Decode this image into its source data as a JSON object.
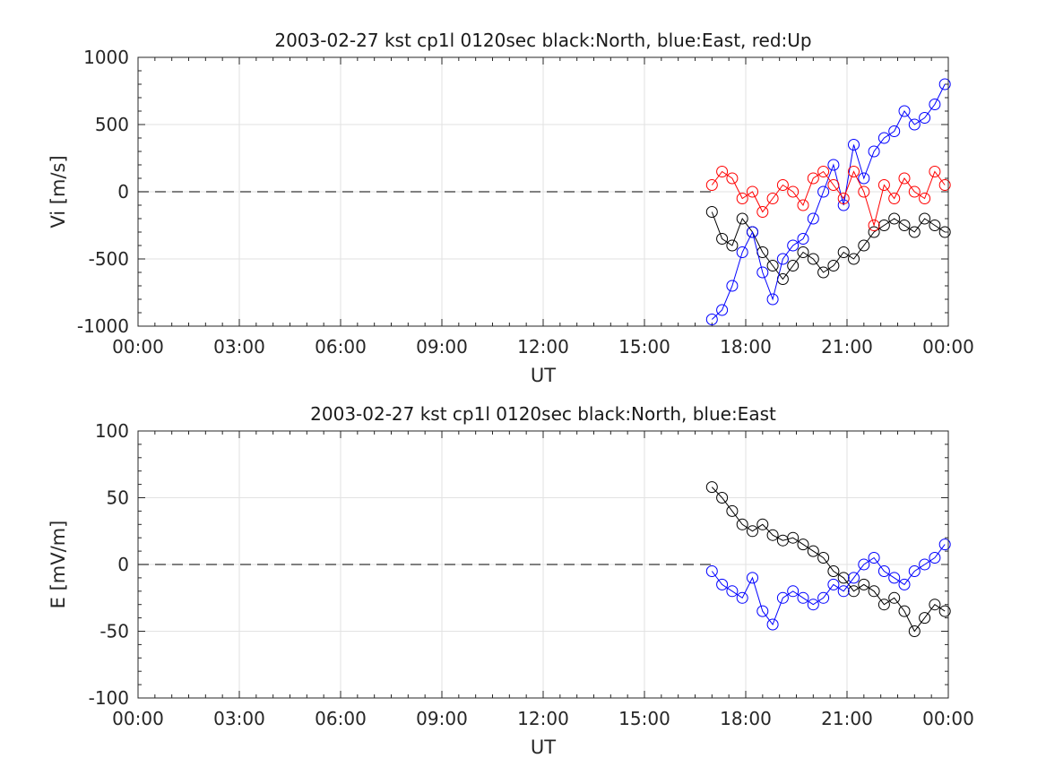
{
  "colors": {
    "north": "#000000",
    "east": "#0000ff",
    "up": "#ff0000",
    "grid": "#e2e2e2",
    "zero_line": "#000000"
  },
  "chart_data": [
    {
      "type": "scatter",
      "title": "2003-02-27 kst cp1l 0120sec black:North, blue:East, red:Up",
      "xlabel": "UT",
      "ylabel": "Vi [m/s]",
      "xlim": [
        0,
        24
      ],
      "ylim": [
        -1000,
        1000
      ],
      "x_ticks": [
        "00:00",
        "03:00",
        "06:00",
        "09:00",
        "12:00",
        "15:00",
        "18:00",
        "21:00",
        "00:00"
      ],
      "y_ticks": [
        "-1000",
        "-500",
        "0",
        "500",
        "1000"
      ],
      "grid": true,
      "zero_line": true,
      "markers": "open-circles-with-lines",
      "series": [
        {
          "color": "north",
          "x": [
            17.0,
            17.3,
            17.6,
            17.9,
            18.2,
            18.5,
            18.8,
            19.1,
            19.4,
            19.7,
            20.0,
            20.3,
            20.6,
            20.9,
            21.2,
            21.5,
            21.8,
            22.1,
            22.4,
            22.7,
            23.0,
            23.3,
            23.6,
            23.9
          ],
          "y": [
            -150,
            -350,
            -400,
            -200,
            -300,
            -450,
            -550,
            -650,
            -550,
            -450,
            -500,
            -600,
            -550,
            -450,
            -500,
            -400,
            -300,
            -250,
            -200,
            -250,
            -300,
            -200,
            -250,
            -300
          ]
        },
        {
          "color": "east",
          "x": [
            17.0,
            17.3,
            17.6,
            17.9,
            18.2,
            18.5,
            18.8,
            19.1,
            19.4,
            19.7,
            20.0,
            20.3,
            20.6,
            20.9,
            21.2,
            21.5,
            21.8,
            22.1,
            22.4,
            22.7,
            23.0,
            23.3,
            23.6,
            23.9
          ],
          "y": [
            -950,
            -880,
            -700,
            -450,
            -300,
            -600,
            -800,
            -500,
            -400,
            -350,
            -200,
            0,
            200,
            -100,
            350,
            100,
            300,
            400,
            450,
            600,
            500,
            550,
            650,
            800
          ]
        },
        {
          "color": "up",
          "x": [
            17.0,
            17.3,
            17.6,
            17.9,
            18.2,
            18.5,
            18.8,
            19.1,
            19.4,
            19.7,
            20.0,
            20.3,
            20.6,
            20.9,
            21.2,
            21.5,
            21.8,
            22.1,
            22.4,
            22.7,
            23.0,
            23.3,
            23.6,
            23.9
          ],
          "y": [
            50,
            150,
            100,
            -50,
            0,
            -150,
            -50,
            50,
            0,
            -100,
            100,
            150,
            50,
            -50,
            150,
            0,
            -250,
            50,
            -50,
            100,
            0,
            -50,
            150,
            50
          ]
        }
      ]
    },
    {
      "type": "scatter",
      "title": "2003-02-27 kst cp1l 0120sec black:North, blue:East",
      "xlabel": "UT",
      "ylabel": "E [mV/m]",
      "xlim": [
        0,
        24
      ],
      "ylim": [
        -100,
        100
      ],
      "x_ticks": [
        "00:00",
        "03:00",
        "06:00",
        "09:00",
        "12:00",
        "15:00",
        "18:00",
        "21:00",
        "00:00"
      ],
      "y_ticks": [
        "-100",
        "-50",
        "0",
        "50",
        "100"
      ],
      "grid": true,
      "zero_line": true,
      "markers": "open-circles-with-lines",
      "series": [
        {
          "color": "north",
          "x": [
            17.0,
            17.3,
            17.6,
            17.9,
            18.2,
            18.5,
            18.8,
            19.1,
            19.4,
            19.7,
            20.0,
            20.3,
            20.6,
            20.9,
            21.2,
            21.5,
            21.8,
            22.1,
            22.4,
            22.7,
            23.0,
            23.3,
            23.6,
            23.9
          ],
          "y": [
            58,
            50,
            40,
            30,
            25,
            30,
            22,
            18,
            20,
            15,
            10,
            5,
            -5,
            -10,
            -20,
            -15,
            -20,
            -30,
            -25,
            -35,
            -50,
            -40,
            -30,
            -35
          ]
        },
        {
          "color": "east",
          "x": [
            17.0,
            17.3,
            17.6,
            17.9,
            18.2,
            18.5,
            18.8,
            19.1,
            19.4,
            19.7,
            20.0,
            20.3,
            20.6,
            20.9,
            21.2,
            21.5,
            21.8,
            22.1,
            22.4,
            22.7,
            23.0,
            23.3,
            23.6,
            23.9
          ],
          "y": [
            -5,
            -15,
            -20,
            -25,
            -10,
            -35,
            -45,
            -25,
            -20,
            -25,
            -30,
            -25,
            -15,
            -20,
            -10,
            0,
            5,
            -5,
            -10,
            -15,
            -5,
            0,
            5,
            15
          ]
        }
      ]
    }
  ]
}
